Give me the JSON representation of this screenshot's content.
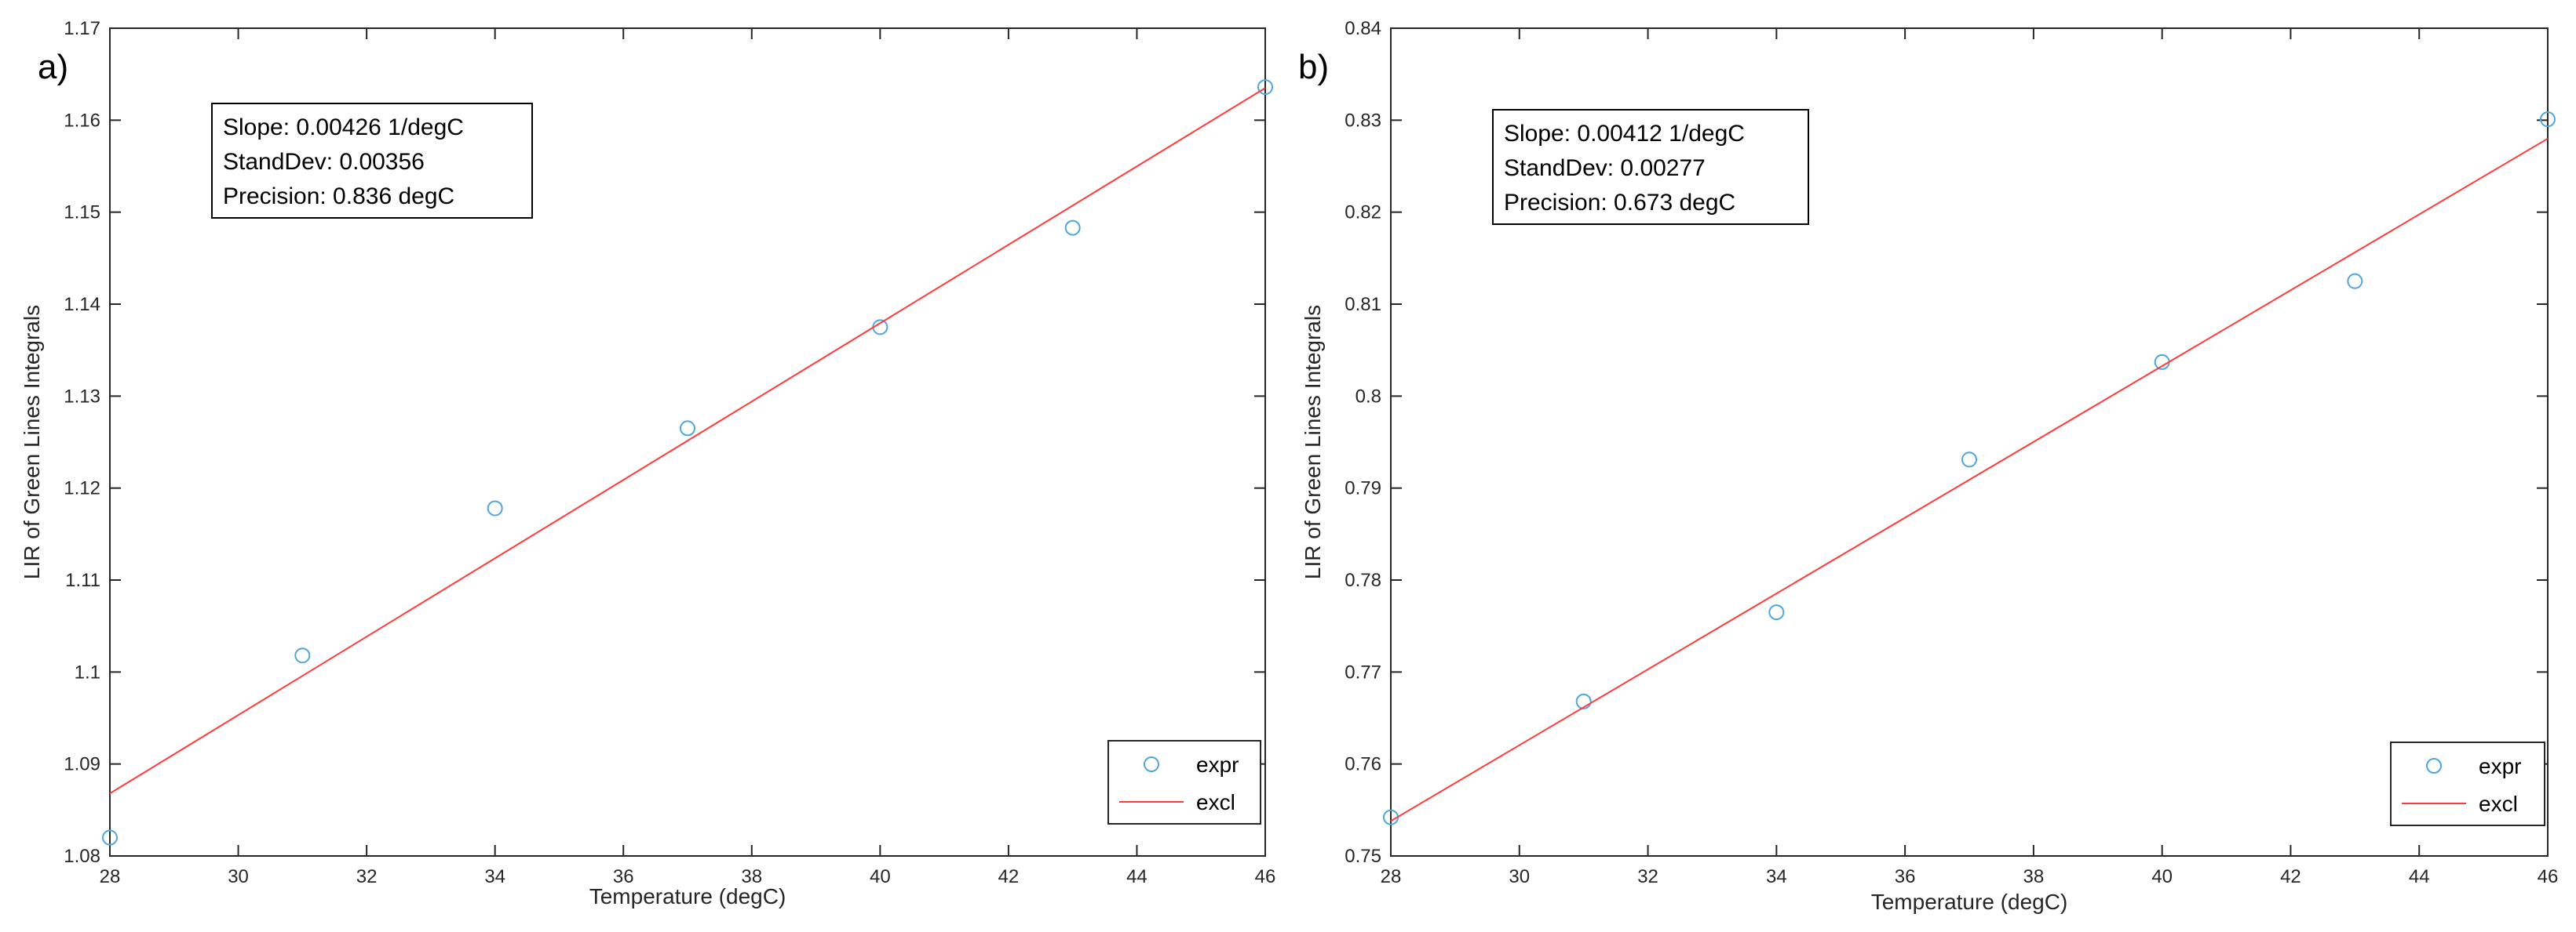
{
  "colors": {
    "marker": "#4ea6dc",
    "fit_line": "#ff3b3b",
    "axis": "#262626",
    "tick_text": "#262626"
  },
  "chart_data": [
    {
      "panel_label": "a)",
      "type": "scatter",
      "xlabel": "Temperature (degC)",
      "ylabel": "LIR of Green Lines Integrals",
      "xlim": [
        28,
        46
      ],
      "ylim": [
        1.08,
        1.17
      ],
      "xticks": [
        28,
        30,
        32,
        34,
        36,
        38,
        40,
        42,
        44,
        46
      ],
      "xtick_labels": [
        "28",
        "30",
        "32",
        "34",
        "36",
        "38",
        "40",
        "42",
        "44",
        "46"
      ],
      "yticks": [
        1.08,
        1.09,
        1.1,
        1.11,
        1.12,
        1.13,
        1.14,
        1.15,
        1.16,
        1.17
      ],
      "ytick_labels": [
        "1.08",
        "1.09",
        "1.1",
        "1.11",
        "1.12",
        "1.13",
        "1.14",
        "1.15",
        "1.16",
        "1.17"
      ],
      "series": [
        {
          "name": "expr",
          "kind": "scatter",
          "x": [
            28,
            31,
            34,
            37,
            40,
            43,
            46
          ],
          "y": [
            1.082,
            1.1018,
            1.1178,
            1.1265,
            1.1375,
            1.1483,
            1.1636
          ]
        },
        {
          "name": "excl",
          "kind": "line",
          "x": [
            28,
            46
          ],
          "y": [
            1.0868,
            1.1635
          ]
        }
      ],
      "annotation": [
        "Slope: 0.00426 1/degC",
        "StandDev: 0.00356",
        "Precision: 0.836 degC"
      ],
      "legend_position": "bottom-right",
      "grid": false
    },
    {
      "panel_label": "b)",
      "type": "scatter",
      "xlabel": "Temperature (degC)",
      "ylabel": "LIR of Green Lines Integrals",
      "xlim": [
        28,
        46
      ],
      "ylim": [
        0.75,
        0.84
      ],
      "xticks": [
        28,
        30,
        32,
        34,
        36,
        38,
        40,
        42,
        44,
        46
      ],
      "xtick_labels": [
        "28",
        "30",
        "32",
        "34",
        "36",
        "38",
        "40",
        "42",
        "44",
        "46"
      ],
      "yticks": [
        0.75,
        0.76,
        0.77,
        0.78,
        0.79,
        0.8,
        0.81,
        0.82,
        0.83,
        0.84
      ],
      "ytick_labels": [
        "0.75",
        "0.76",
        "0.77",
        "0.78",
        "0.79",
        "0.8",
        "0.81",
        "0.82",
        "0.83",
        "0.84"
      ],
      "series": [
        {
          "name": "expr",
          "kind": "scatter",
          "x": [
            28,
            31,
            34,
            37,
            40,
            43,
            46
          ],
          "y": [
            0.7542,
            0.7668,
            0.7765,
            0.7931,
            0.8037,
            0.8125,
            0.8301
          ]
        },
        {
          "name": "excl",
          "kind": "line",
          "x": [
            28,
            46
          ],
          "y": [
            0.7538,
            0.828
          ]
        }
      ],
      "annotation": [
        "Slope: 0.00412 1/degC",
        "StandDev: 0.00277",
        "Precision: 0.673 degC"
      ],
      "legend_position": "bottom-right",
      "grid": false
    }
  ]
}
